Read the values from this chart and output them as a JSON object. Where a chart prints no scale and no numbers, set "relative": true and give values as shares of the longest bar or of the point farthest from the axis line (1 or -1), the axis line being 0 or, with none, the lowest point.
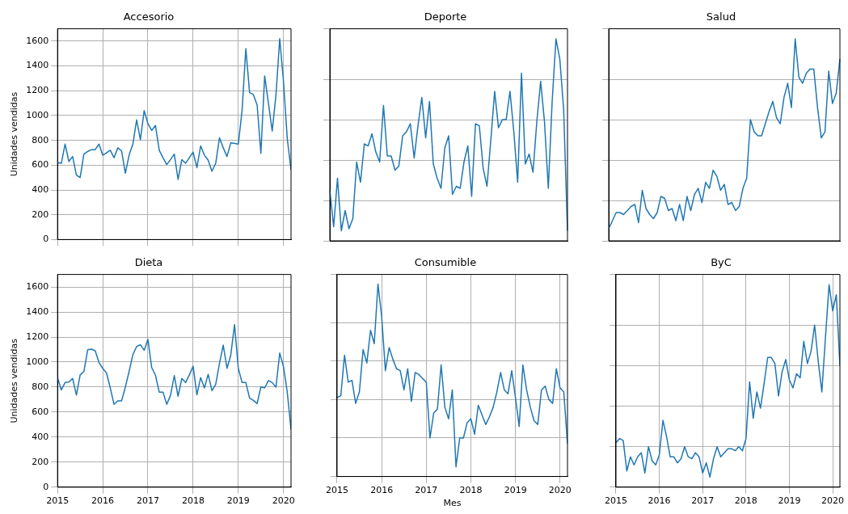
{
  "chart_data": [
    {
      "type": "line",
      "title": "Accesorio",
      "ylabel": "Unidades vendidas",
      "color": "#1f77b4",
      "grid": true,
      "tick_labels": "y",
      "x": [
        "2015-01",
        "2015-02",
        "2015-03",
        "2015-04",
        "2015-05",
        "2015-06",
        "2015-07",
        "2015-08",
        "2015-09",
        "2015-10",
        "2015-11",
        "2015-12",
        "2016-01",
        "2016-02",
        "2016-03",
        "2016-04",
        "2016-05",
        "2016-06",
        "2016-07",
        "2016-08",
        "2016-09",
        "2016-10",
        "2016-11",
        "2016-12",
        "2017-01",
        "2017-02",
        "2017-03",
        "2017-04",
        "2017-05",
        "2017-06",
        "2017-07",
        "2017-08",
        "2017-09",
        "2017-10",
        "2017-11",
        "2017-12",
        "2018-01",
        "2018-02",
        "2018-03",
        "2018-04",
        "2018-05",
        "2018-06",
        "2018-07",
        "2018-08",
        "2018-09",
        "2018-10",
        "2018-11",
        "2018-12",
        "2019-01",
        "2019-02",
        "2019-03",
        "2019-04",
        "2019-05",
        "2019-06",
        "2019-07",
        "2019-08",
        "2019-09",
        "2019-10",
        "2019-11",
        "2019-12",
        "2020-01",
        "2020-02",
        "2020-03"
      ],
      "values": [
        620,
        615,
        770,
        630,
        670,
        520,
        500,
        690,
        710,
        725,
        725,
        770,
        680,
        700,
        720,
        660,
        740,
        715,
        535,
        680,
        770,
        965,
        805,
        1040,
        935,
        880,
        920,
        720,
        660,
        605,
        645,
        690,
        485,
        645,
        615,
        660,
        705,
        580,
        755,
        680,
        640,
        550,
        615,
        820,
        740,
        670,
        780,
        775,
        770,
        1040,
        1540,
        1185,
        1170,
        1085,
        695,
        1320,
        1100,
        875,
        1165,
        1620,
        1275,
        815,
        560
      ],
      "xlim": [
        "2015-01",
        "2020-03"
      ],
      "xticks": [
        "2015",
        "2016",
        "2017",
        "2018",
        "2019",
        "2020"
      ],
      "ylim": [
        0,
        1700
      ],
      "yticks": [
        0,
        200,
        400,
        600,
        800,
        1000,
        1200,
        1400,
        1600
      ]
    },
    {
      "type": "line",
      "title": "Deporte",
      "color": "#1f77b4",
      "grid": "y",
      "tick_labels": false,
      "relative": true,
      "categories": [
        null,
        null,
        null,
        null,
        null,
        null,
        null,
        null,
        null,
        null,
        null,
        null,
        null,
        null,
        null,
        null,
        null,
        null,
        null,
        null,
        null,
        null,
        null,
        null,
        null,
        null,
        null,
        null,
        null,
        null,
        null,
        null,
        null,
        null,
        null,
        null,
        null,
        null,
        null,
        null,
        null,
        null,
        null,
        null,
        null,
        null,
        null,
        null,
        null,
        null,
        null,
        null,
        null,
        null,
        null,
        null,
        null,
        null,
        null,
        null,
        null,
        null,
        null
      ],
      "values": [
        0.25,
        0.07,
        0.31,
        0.05,
        0.15,
        0.06,
        0.11,
        0.39,
        0.29,
        0.48,
        0.47,
        0.53,
        0.44,
        0.39,
        0.67,
        0.42,
        0.42,
        0.35,
        0.37,
        0.52,
        0.54,
        0.58,
        0.41,
        0.57,
        0.71,
        0.51,
        0.69,
        0.38,
        0.31,
        0.26,
        0.46,
        0.52,
        0.23,
        0.27,
        0.26,
        0.39,
        0.47,
        0.22,
        0.58,
        0.57,
        0.36,
        0.27,
        0.5,
        0.74,
        0.56,
        0.6,
        0.6,
        0.74,
        0.54,
        0.29,
        0.83,
        0.38,
        0.43,
        0.34,
        0.59,
        0.79,
        0.59,
        0.26,
        0.69,
        1,
        0.9,
        0.65,
        0.05
      ]
    },
    {
      "type": "line",
      "title": "Salud",
      "color": "#1f77b4",
      "grid": "y",
      "tick_labels": false,
      "relative": true,
      "categories": [
        null,
        null,
        null,
        null,
        null,
        null,
        null,
        null,
        null,
        null,
        null,
        null,
        null,
        null,
        null,
        null,
        null,
        null,
        null,
        null,
        null,
        null,
        null,
        null,
        null,
        null,
        null,
        null,
        null,
        null,
        null,
        null,
        null,
        null,
        null,
        null,
        null,
        null,
        null,
        null,
        null,
        null,
        null,
        null,
        null,
        null,
        null,
        null,
        null,
        null,
        null,
        null,
        null,
        null,
        null,
        null,
        null,
        null,
        null,
        null,
        null,
        null,
        null
      ],
      "values": [
        0.06,
        0.1,
        0.14,
        0.14,
        0.13,
        0.15,
        0.17,
        0.18,
        0.09,
        0.25,
        0.16,
        0.13,
        0.11,
        0.14,
        0.22,
        0.21,
        0.15,
        0.16,
        0.1,
        0.18,
        0.1,
        0.22,
        0.15,
        0.23,
        0.26,
        0.19,
        0.29,
        0.26,
        0.35,
        0.32,
        0.25,
        0.28,
        0.18,
        0.19,
        0.15,
        0.17,
        0.26,
        0.31,
        0.6,
        0.54,
        0.52,
        0.52,
        0.58,
        0.64,
        0.69,
        0.61,
        0.58,
        0.71,
        0.78,
        0.66,
        1,
        0.81,
        0.78,
        0.83,
        0.85,
        0.85,
        0.66,
        0.51,
        0.54,
        0.84,
        0.68,
        0.73,
        0.9
      ]
    },
    {
      "type": "line",
      "title": "Dieta",
      "ylabel": "Unidades vendidas",
      "color": "#1f77b4",
      "grid": true,
      "x": [
        "2015-01",
        "2015-02",
        "2015-03",
        "2015-04",
        "2015-05",
        "2015-06",
        "2015-07",
        "2015-08",
        "2015-09",
        "2015-10",
        "2015-11",
        "2015-12",
        "2016-01",
        "2016-02",
        "2016-03",
        "2016-04",
        "2016-05",
        "2016-06",
        "2016-07",
        "2016-08",
        "2016-09",
        "2016-10",
        "2016-11",
        "2016-12",
        "2017-01",
        "2017-02",
        "2017-03",
        "2017-04",
        "2017-05",
        "2017-06",
        "2017-07",
        "2017-08",
        "2017-09",
        "2017-10",
        "2017-11",
        "2017-12",
        "2018-01",
        "2018-02",
        "2018-03",
        "2018-04",
        "2018-05",
        "2018-06",
        "2018-07",
        "2018-08",
        "2018-09",
        "2018-10",
        "2018-11",
        "2018-12",
        "2019-01",
        "2019-02",
        "2019-03",
        "2019-04",
        "2019-05",
        "2019-06",
        "2019-07",
        "2019-08",
        "2019-09",
        "2019-10",
        "2019-11",
        "2019-12",
        "2020-01",
        "2020-02",
        "2020-03"
      ],
      "values": [
        875,
        777,
        836,
        840,
        869,
        736,
        897,
        924,
        1098,
        1103,
        1090,
        996,
        950,
        913,
        793,
        662,
        690,
        690,
        800,
        924,
        1059,
        1124,
        1138,
        1094,
        1181,
        956,
        895,
        760,
        760,
        662,
        734,
        891,
        727,
        869,
        836,
        897,
        967,
        738,
        876,
        793,
        902,
        771,
        821,
        989,
        1135,
        950,
        1055,
        1299,
        950,
        836,
        836,
        712,
        694,
        668,
        803,
        793,
        852,
        836,
        800,
        1072,
        963,
        760,
        461
      ],
      "xlim": [
        "2015-01",
        "2020-03"
      ],
      "xticks": [
        "2015",
        "2016",
        "2017",
        "2018",
        "2019",
        "2020"
      ],
      "ylim": [
        0,
        1700
      ],
      "yticks": [
        0,
        200,
        400,
        600,
        800,
        1000,
        1200,
        1400,
        1600
      ]
    },
    {
      "type": "line",
      "title": "Consumible",
      "xlabel": "Mes",
      "color": "#1f77b4",
      "grid": true,
      "tick_labels": "x",
      "relative": true,
      "x": [
        "2015-01",
        "2015-02",
        "2015-03",
        "2015-04",
        "2015-05",
        "2015-06",
        "2015-07",
        "2015-08",
        "2015-09",
        "2015-10",
        "2015-11",
        "2015-12",
        "2016-01",
        "2016-02",
        "2016-03",
        "2016-04",
        "2016-05",
        "2016-06",
        "2016-07",
        "2016-08",
        "2016-09",
        "2016-10",
        "2016-11",
        "2016-12",
        "2017-01",
        "2017-02",
        "2017-03",
        "2017-04",
        "2017-05",
        "2017-06",
        "2017-07",
        "2017-08",
        "2017-09",
        "2017-10",
        "2017-11",
        "2017-12",
        "2018-01",
        "2018-02",
        "2018-03",
        "2018-04",
        "2018-05",
        "2018-06",
        "2018-07",
        "2018-08",
        "2018-09",
        "2018-10",
        "2018-11",
        "2018-12",
        "2019-01",
        "2019-02",
        "2019-03",
        "2019-04",
        "2019-05",
        "2019-06",
        "2019-07",
        "2019-08",
        "2019-09",
        "2019-10",
        "2019-11",
        "2019-12",
        "2020-01",
        "2020-02",
        "2020-03"
      ],
      "values": [
        0.41,
        0.42,
        0.63,
        0.49,
        0.5,
        0.38,
        0.44,
        0.66,
        0.59,
        0.76,
        0.69,
        1,
        0.83,
        0.55,
        0.67,
        0.61,
        0.56,
        0.55,
        0.45,
        0.56,
        0.39,
        0.54,
        0.53,
        0.51,
        0.49,
        0.2,
        0.33,
        0.35,
        0.58,
        0.36,
        0.3,
        0.45,
        0.05,
        0.2,
        0.2,
        0.28,
        0.3,
        0.22,
        0.37,
        0.32,
        0.27,
        0.31,
        0.36,
        0.44,
        0.54,
        0.45,
        0.43,
        0.55,
        0.41,
        0.26,
        0.58,
        0.45,
        0.36,
        0.29,
        0.27,
        0.45,
        0.47,
        0.4,
        0.38,
        0.56,
        0.46,
        0.44,
        0.17
      ],
      "xlim": [
        "2015-01",
        "2020-03"
      ],
      "xticks": [
        "2015",
        "2016",
        "2017",
        "2018",
        "2019",
        "2020"
      ]
    },
    {
      "type": "line",
      "title": "ByC",
      "color": "#1f77b4",
      "grid": true,
      "tick_labels": "x",
      "relative": true,
      "x": [
        "2015-01",
        "2015-02",
        "2015-03",
        "2015-04",
        "2015-05",
        "2015-06",
        "2015-07",
        "2015-08",
        "2015-09",
        "2015-10",
        "2015-11",
        "2015-12",
        "2016-01",
        "2016-02",
        "2016-03",
        "2016-04",
        "2016-05",
        "2016-06",
        "2016-07",
        "2016-08",
        "2016-09",
        "2016-10",
        "2016-11",
        "2016-12",
        "2017-01",
        "2017-02",
        "2017-03",
        "2017-04",
        "2017-05",
        "2017-06",
        "2017-07",
        "2017-08",
        "2017-09",
        "2017-10",
        "2017-11",
        "2017-12",
        "2018-01",
        "2018-02",
        "2018-03",
        "2018-04",
        "2018-05",
        "2018-06",
        "2018-07",
        "2018-08",
        "2018-09",
        "2018-10",
        "2018-11",
        "2018-12",
        "2019-01",
        "2019-02",
        "2019-03",
        "2019-04",
        "2019-05",
        "2019-06",
        "2019-07",
        "2019-08",
        "2019-09",
        "2019-10",
        "2019-11",
        "2019-12",
        "2020-01",
        "2020-02",
        "2020-03"
      ],
      "values": [
        0.22,
        0.24,
        0.23,
        0.08,
        0.15,
        0.11,
        0.15,
        0.17,
        0.07,
        0.2,
        0.13,
        0.11,
        0.16,
        0.33,
        0.25,
        0.15,
        0.15,
        0.12,
        0.14,
        0.2,
        0.15,
        0.14,
        0.17,
        0.15,
        0.07,
        0.12,
        0.05,
        0.14,
        0.2,
        0.15,
        0.17,
        0.19,
        0.19,
        0.18,
        0.2,
        0.18,
        0.24,
        0.52,
        0.34,
        0.47,
        0.39,
        0.51,
        0.64,
        0.64,
        0.61,
        0.45,
        0.57,
        0.63,
        0.53,
        0.49,
        0.56,
        0.54,
        0.72,
        0.61,
        0.67,
        0.8,
        0.62,
        0.47,
        0.74,
        1,
        0.87,
        0.95,
        0.6
      ],
      "xlim": [
        "2015-01",
        "2020-03"
      ],
      "xticks": [
        "2015",
        "2016",
        "2017",
        "2018",
        "2019",
        "2020"
      ]
    }
  ]
}
